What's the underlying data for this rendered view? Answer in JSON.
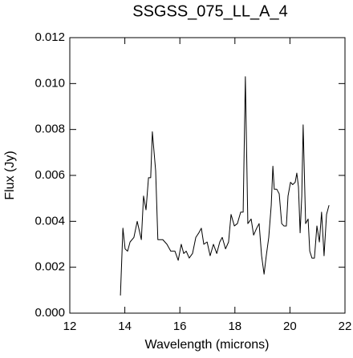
{
  "chart_data": {
    "type": "line",
    "title": "SSGSS_075_LL_A_4",
    "x_label": "Wavelength (microns)",
    "y_label": "Flux (Jy)",
    "xlim": [
      12,
      22
    ],
    "xticks": [
      12,
      14,
      16,
      18,
      20,
      22
    ],
    "ylim": [
      0,
      0.012
    ],
    "yticks": [
      {
        "value": 0,
        "label": "0.000"
      },
      {
        "value": 0.002,
        "label": "0.002"
      },
      {
        "value": 0.004,
        "label": "0.004"
      },
      {
        "value": 0.006,
        "label": "0.006"
      },
      {
        "value": 0.008,
        "label": "0.008"
      },
      {
        "value": 0.01,
        "label": "0.010"
      },
      {
        "value": 0.012,
        "label": "0.012"
      }
    ],
    "series": [
      {
        "color": "#000000",
        "x": [
          13.84,
          13.93,
          14.01,
          14.1,
          14.19,
          14.33,
          14.45,
          14.6,
          14.68,
          14.77,
          14.86,
          14.94,
          15.0,
          15.12,
          15.2,
          15.38,
          15.53,
          15.67,
          15.82,
          15.94,
          16.05,
          16.14,
          16.23,
          16.34,
          16.46,
          16.58,
          16.69,
          16.78,
          16.87,
          16.99,
          17.1,
          17.22,
          17.34,
          17.45,
          17.54,
          17.66,
          17.77,
          17.86,
          17.98,
          18.09,
          18.21,
          18.3,
          18.38,
          18.47,
          18.59,
          18.68,
          18.79,
          18.88,
          18.97,
          19.06,
          19.14,
          19.23,
          19.32,
          19.38,
          19.43,
          19.52,
          19.61,
          19.7,
          19.78,
          19.87,
          19.93,
          20.02,
          20.1,
          20.19,
          20.25,
          20.31,
          20.37,
          20.43,
          20.48,
          20.57,
          20.66,
          20.72,
          20.8,
          20.89,
          20.98,
          21.07,
          21.15,
          21.24,
          21.33,
          21.42
        ],
        "values": [
          0.00077,
          0.0037,
          0.0028,
          0.0027,
          0.0031,
          0.0033,
          0.004,
          0.0032,
          0.0051,
          0.0045,
          0.0059,
          0.0059,
          0.0079,
          0.0062,
          0.0032,
          0.0032,
          0.003,
          0.0027,
          0.0027,
          0.0023,
          0.003,
          0.0026,
          0.0027,
          0.0024,
          0.0026,
          0.0033,
          0.0035,
          0.0037,
          0.003,
          0.0031,
          0.0025,
          0.003,
          0.0026,
          0.0031,
          0.0033,
          0.0028,
          0.0031,
          0.0043,
          0.0038,
          0.0039,
          0.0044,
          0.0044,
          0.0103,
          0.0039,
          0.0041,
          0.0034,
          0.0037,
          0.0039,
          0.0025,
          0.0017,
          0.0025,
          0.0033,
          0.0047,
          0.0064,
          0.0054,
          0.0054,
          0.0052,
          0.0039,
          0.0038,
          0.0038,
          0.0051,
          0.0057,
          0.0056,
          0.0057,
          0.0061,
          0.0055,
          0.0035,
          0.0051,
          0.0082,
          0.0039,
          0.0041,
          0.0027,
          0.0024,
          0.0024,
          0.0038,
          0.0031,
          0.0044,
          0.0025,
          0.0043,
          0.0047
        ]
      }
    ]
  }
}
